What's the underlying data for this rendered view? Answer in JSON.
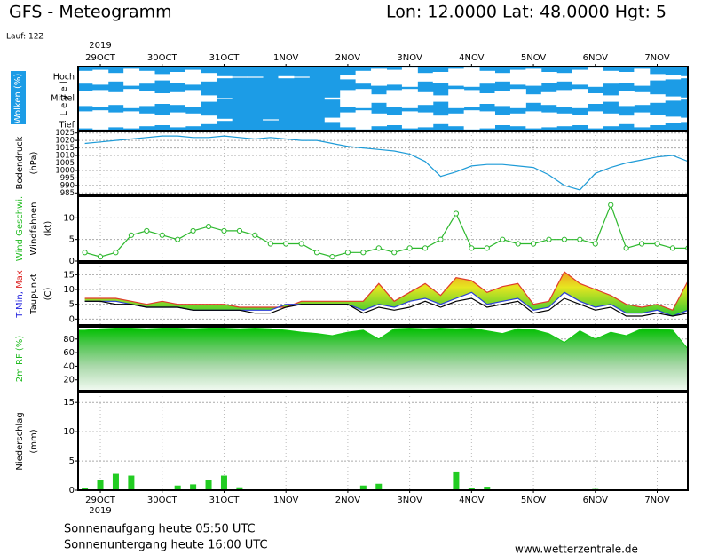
{
  "header": {
    "title": "GFS - Meteogramm",
    "location": "Lon: 12.0000 Lat: 48.0000 Hgt: 5",
    "run": "Lauf: 12Z"
  },
  "chart_data": [
    {
      "type": "cloud",
      "year": "2019",
      "categories": [
        null,
        "29OCT",
        null,
        null,
        null,
        "30OCT",
        null,
        null,
        null,
        "31OCT",
        null,
        null,
        null,
        "1NOV",
        null,
        null,
        null,
        "2NOV",
        null,
        null,
        null,
        "3NOV",
        null,
        null,
        null,
        "4NOV",
        null,
        null,
        null,
        "5NOV",
        null,
        null,
        null,
        "6NOV",
        null,
        null,
        null,
        "7NOV",
        null,
        null
      ],
      "ylabel": [
        [
          {
            "text": "Wolken (%)",
            "color": "#ffffff"
          }
        ],
        [
          {
            "text": "L e v e l",
            "color": "#000000"
          }
        ]
      ],
      "background": "#1c9ce6",
      "ylim": [
        0,
        100
      ],
      "series": [
        {
          "name": "Hoch",
          "color": "#ffffff",
          "values": [
            60,
            70,
            40,
            80,
            60,
            30,
            50,
            70,
            40,
            10,
            5,
            5,
            0,
            10,
            5,
            0,
            0,
            20,
            60,
            80,
            70,
            90,
            40,
            50,
            80,
            90,
            60,
            40,
            70,
            80,
            50,
            40,
            70,
            90,
            60,
            50,
            80,
            30,
            20,
            10
          ]
        },
        {
          "name": "Mittel",
          "color": "#ffffff",
          "values": [
            70,
            80,
            60,
            90,
            70,
            50,
            60,
            80,
            30,
            5,
            0,
            0,
            0,
            0,
            0,
            0,
            10,
            80,
            90,
            40,
            80,
            90,
            60,
            30,
            90,
            80,
            50,
            70,
            90,
            40,
            60,
            80,
            90,
            50,
            30,
            70,
            60,
            40,
            20,
            10
          ]
        },
        {
          "name": "Tief",
          "color": "#ffffff",
          "values": [
            80,
            90,
            70,
            80,
            60,
            50,
            70,
            60,
            40,
            10,
            0,
            0,
            5,
            0,
            0,
            0,
            20,
            70,
            90,
            60,
            50,
            80,
            70,
            40,
            60,
            90,
            80,
            50,
            60,
            80,
            70,
            60,
            50,
            80,
            60,
            40,
            70,
            50,
            30,
            20
          ]
        }
      ]
    },
    {
      "type": "line",
      "ylabel": [
        [
          {
            "text": "Bodendruck",
            "color": "#000000"
          }
        ],
        [
          {
            "text": "(hPa)",
            "color": "#000000"
          }
        ]
      ],
      "ylim": [
        984,
        1026
      ],
      "yticks": [
        985,
        990,
        995,
        1000,
        1005,
        1010,
        1015,
        1020,
        1025
      ],
      "grid": true,
      "color": "#1e9bd7",
      "values": [
        1018,
        1019,
        1020,
        1021,
        1022,
        1023,
        1023,
        1022,
        1022,
        1023,
        1022,
        1021,
        1022,
        1021,
        1020,
        1020,
        1018,
        1016,
        1015,
        1014,
        1013,
        1011,
        1006,
        996,
        999,
        1003,
        1004,
        1004,
        1003,
        1002,
        997,
        990,
        987,
        998,
        1002,
        1005,
        1007,
        1009,
        1010,
        1006
      ]
    },
    {
      "type": "line",
      "markers": true,
      "ylabel": [
        [
          {
            "text": "Wind Geschwi.",
            "color": "#22bb22"
          }
        ],
        [
          {
            "text": "Windfahnen",
            "color": "#000000"
          }
        ],
        [
          {
            "text": "(kt)",
            "color": "#000000"
          }
        ]
      ],
      "ylim": [
        0,
        15
      ],
      "yticks": [
        0,
        5,
        10
      ],
      "grid": true,
      "color": "#2db82d",
      "values": [
        2,
        1,
        2,
        6,
        7,
        6,
        5,
        7,
        8,
        7,
        7,
        6,
        4,
        4,
        4,
        2,
        1,
        2,
        2,
        3,
        2,
        3,
        3,
        5,
        11,
        3,
        3,
        5,
        4,
        4,
        5,
        5,
        5,
        4,
        13,
        3,
        4,
        4,
        3,
        3
      ]
    },
    {
      "type": "line",
      "fill_between": [
        1,
        0
      ],
      "ylabel": [
        [
          {
            "text": "T-Min,",
            "color": "#2222dd"
          },
          {
            "text": "Max",
            "color": "#dd2222"
          }
        ],
        [
          {
            "text": "Taupunkt",
            "color": "#000000"
          }
        ],
        [
          {
            "text": "(C)",
            "color": "#000000"
          }
        ]
      ],
      "ylim": [
        -2,
        19
      ],
      "yticks": [
        0,
        5,
        10,
        15
      ],
      "grid": true,
      "series": [
        {
          "color": "#e03a2a",
          "values": [
            7,
            7,
            7,
            6,
            5,
            6,
            5,
            5,
            5,
            5,
            4,
            4,
            4,
            4,
            6,
            6,
            6,
            6,
            6,
            12,
            6,
            9,
            12,
            8,
            14,
            13,
            9,
            11,
            12,
            5,
            6,
            16,
            12,
            10,
            8,
            5,
            4,
            5,
            3,
            13
          ]
        },
        {
          "color": "#2b3fd6",
          "values": [
            6,
            6,
            6,
            5,
            4,
            4,
            4,
            3,
            3,
            3,
            3,
            3,
            3,
            5,
            5,
            5,
            5,
            5,
            3,
            5,
            4,
            6,
            7,
            5,
            7,
            9,
            5,
            6,
            7,
            3,
            4,
            9,
            6,
            4,
            5,
            2,
            2,
            3,
            1,
            3
          ]
        },
        {
          "color": "#000000",
          "values": [
            6,
            6,
            5,
            5,
            4,
            4,
            4,
            3,
            3,
            3,
            3,
            2,
            2,
            4,
            5,
            5,
            5,
            5,
            2,
            4,
            3,
            4,
            6,
            4,
            6,
            7,
            4,
            5,
            6,
            2,
            3,
            7,
            5,
            3,
            4,
            1,
            1,
            2,
            1,
            2
          ]
        }
      ]
    },
    {
      "type": "area",
      "ylabel": [
        [
          {
            "text": "2m RF (%)",
            "color": "#22bb22"
          }
        ]
      ],
      "ylim": [
        4,
        98
      ],
      "yticks": [
        20,
        40,
        60,
        80
      ],
      "grid": true,
      "color": "#14c814",
      "values": [
        93,
        95,
        96,
        96,
        95,
        96,
        96,
        95,
        96,
        96,
        95,
        96,
        95,
        93,
        90,
        88,
        85,
        90,
        93,
        80,
        95,
        96,
        95,
        96,
        95,
        96,
        92,
        88,
        95,
        94,
        88,
        75,
        92,
        80,
        90,
        85,
        95,
        95,
        93,
        65
      ]
    },
    {
      "type": "bar",
      "year": "2019",
      "categories": [
        null,
        "29OCT",
        null,
        null,
        null,
        "30OCT",
        null,
        null,
        null,
        "31OCT",
        null,
        null,
        null,
        "1NOV",
        null,
        null,
        null,
        "2NOV",
        null,
        null,
        null,
        "3NOV",
        null,
        null,
        null,
        "4NOV",
        null,
        null,
        null,
        "5NOV",
        null,
        null,
        null,
        "6NOV",
        null,
        null,
        null,
        "7NOV",
        null,
        null
      ],
      "ylabel": [
        [
          {
            "text": "Niederschlag",
            "color": "#000000"
          }
        ],
        [
          {
            "text": "(mm)",
            "color": "#000000"
          }
        ]
      ],
      "ylim": [
        0,
        16.7
      ],
      "yticks": [
        0,
        5,
        10,
        15
      ],
      "grid": true,
      "color": "#22cc22",
      "values": [
        0.3,
        1.8,
        2.8,
        2.5,
        0,
        0,
        0.8,
        1,
        1.8,
        2.5,
        0.5,
        0,
        0,
        0,
        0,
        0,
        0,
        0,
        0.8,
        1.1,
        0,
        0,
        0,
        0,
        3.2,
        0.3,
        0.6,
        0,
        0,
        0,
        0,
        0,
        0,
        0.2,
        0,
        0,
        0,
        0,
        0,
        0
      ]
    }
  ],
  "footer": {
    "sunrise": "Sonnenaufgang heute 05:50 UTC",
    "sunset": "Sonnenuntergang heute 16:00 UTC",
    "source": "www.wetterzentrale.de"
  }
}
